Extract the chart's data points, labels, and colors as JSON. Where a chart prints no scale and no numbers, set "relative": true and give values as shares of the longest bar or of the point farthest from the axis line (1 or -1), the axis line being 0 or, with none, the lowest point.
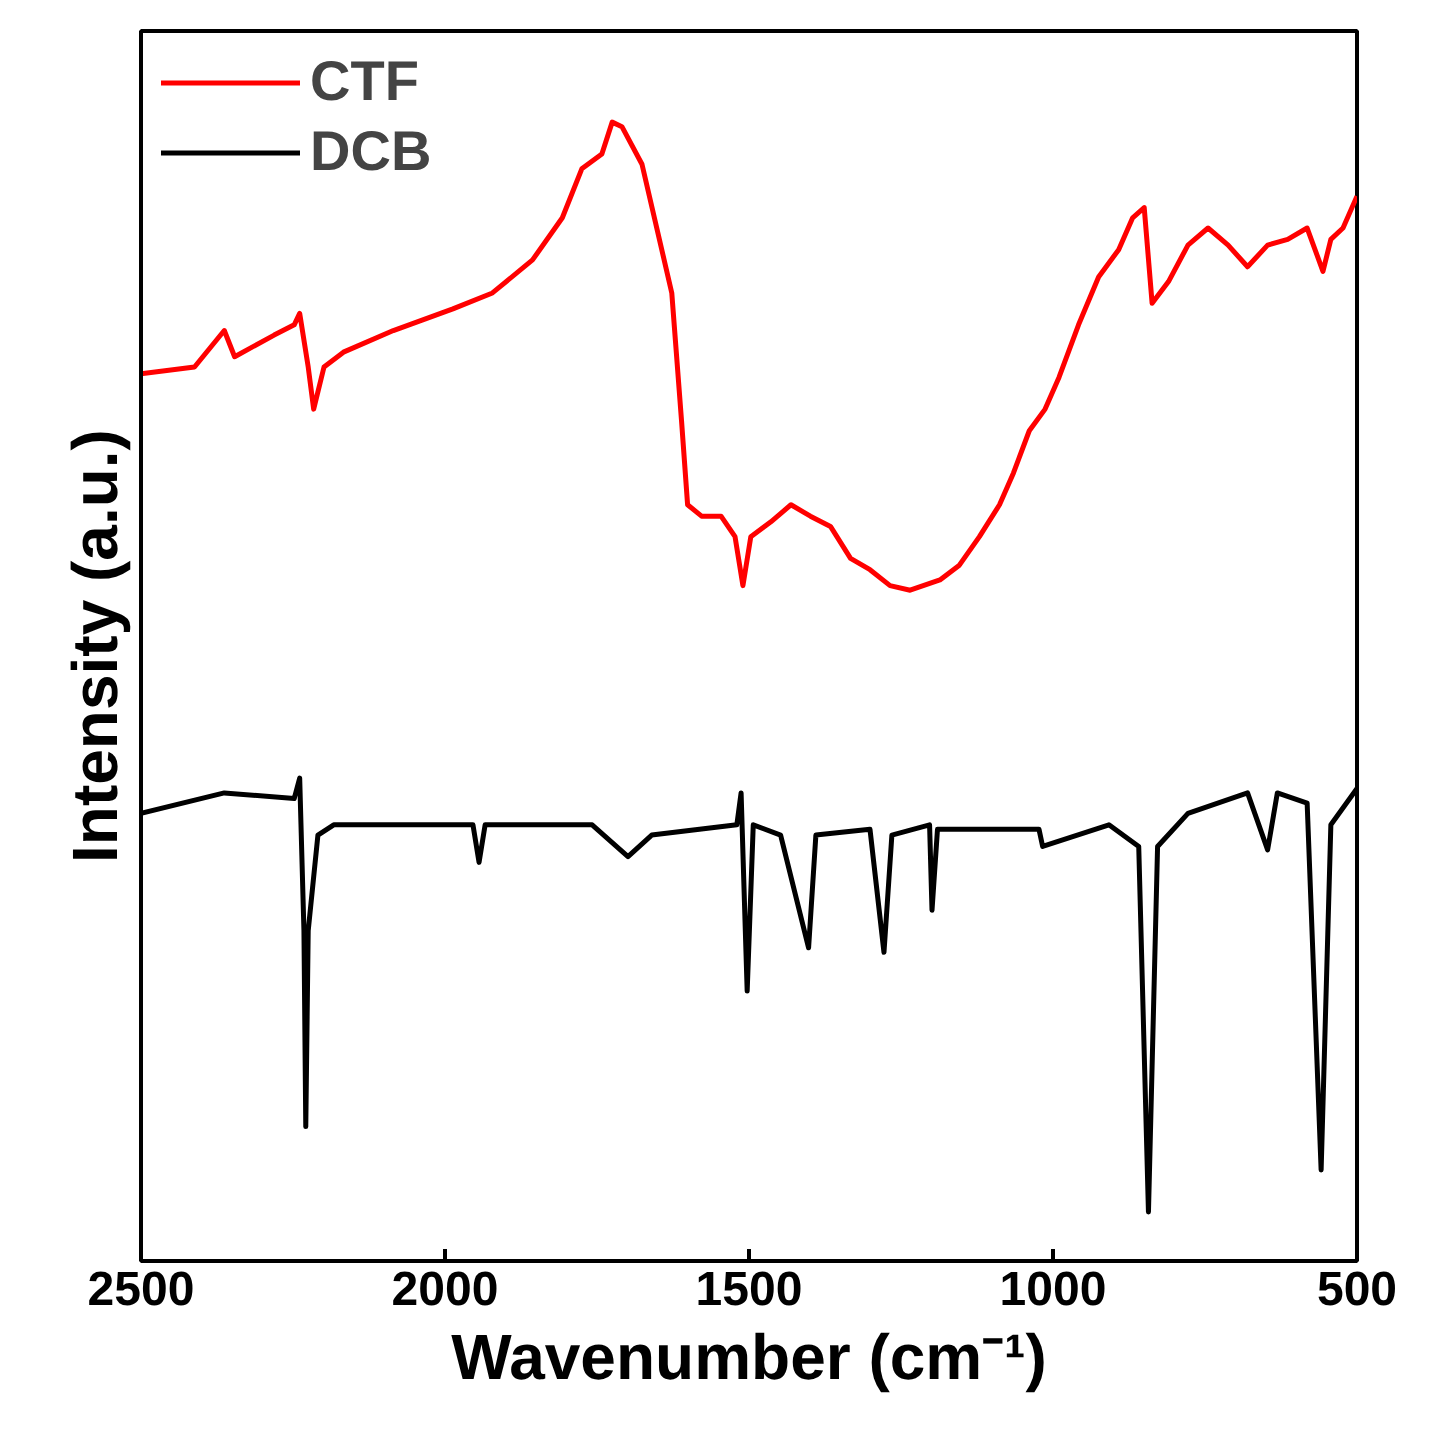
{
  "chart_data": {
    "type": "line",
    "relative": true,
    "xlabel": "Wavenumber (cm⁻¹)",
    "ylabel": "Intensity (a.u.)",
    "xlim": [
      2500,
      500
    ],
    "xticks": [
      2500,
      2000,
      1500,
      1000,
      500
    ],
    "grid": false,
    "legend": "top left",
    "tick_labels": "x",
    "line_style": "solid",
    "marker": "none",
    "series": [
      {
        "name": "CTF",
        "color": "#ff0000",
        "x": [
          2500,
          2412,
          2363,
          2346,
          2281,
          2248,
          2239,
          2225,
          2216,
          2199,
          2167,
          2085,
          1987,
          1922,
          1856,
          1807,
          1775,
          1742,
          1725,
          1709,
          1676,
          1627,
          1611,
          1601,
          1578,
          1546,
          1523,
          1510,
          1497,
          1464,
          1431,
          1399,
          1366,
          1333,
          1301,
          1268,
          1235,
          1186,
          1154,
          1121,
          1088,
          1065,
          1039,
          1013,
          990,
          958,
          925,
          892,
          869,
          850,
          837,
          810,
          778,
          745,
          712,
          680,
          647,
          614,
          582,
          556,
          543,
          523,
          500
        ],
        "values": [
          0.779,
          0.785,
          0.817,
          0.794,
          0.813,
          0.822,
          0.832,
          0.785,
          0.748,
          0.785,
          0.798,
          0.817,
          0.836,
          0.85,
          0.879,
          0.916,
          0.959,
          0.972,
          1.0,
          0.996,
          0.963,
          0.85,
          0.738,
          0.664,
          0.654,
          0.654,
          0.636,
          0.593,
          0.636,
          0.649,
          0.664,
          0.654,
          0.645,
          0.617,
          0.607,
          0.593,
          0.589,
          0.598,
          0.611,
          0.636,
          0.664,
          0.692,
          0.729,
          0.748,
          0.776,
          0.822,
          0.864,
          0.888,
          0.916,
          0.925,
          0.841,
          0.86,
          0.892,
          0.907,
          0.892,
          0.873,
          0.892,
          0.897,
          0.907,
          0.869,
          0.897,
          0.907,
          0.935
        ]
      },
      {
        "name": "DCB",
        "color": "#000000",
        "x": [
          2500,
          2363,
          2248,
          2239,
          2232,
          2229,
          2225,
          2209,
          2183,
          1954,
          1944,
          1934,
          1758,
          1699,
          1660,
          1520,
          1513,
          1503,
          1493,
          1448,
          1402,
          1390,
          1301,
          1278,
          1265,
          1203,
          1199,
          1190,
          1023,
          1017,
          908,
          859,
          843,
          828,
          778,
          680,
          647,
          631,
          582,
          559,
          543,
          500
        ],
        "values": [
          0.393,
          0.411,
          0.406,
          0.424,
          0.29,
          0.118,
          0.29,
          0.374,
          0.383,
          0.383,
          0.35,
          0.383,
          0.383,
          0.355,
          0.374,
          0.383,
          0.411,
          0.237,
          0.383,
          0.374,
          0.275,
          0.374,
          0.379,
          0.271,
          0.374,
          0.383,
          0.308,
          0.379,
          0.379,
          0.364,
          0.383,
          0.364,
          0.043,
          0.364,
          0.393,
          0.411,
          0.361,
          0.411,
          0.402,
          0.08,
          0.383,
          0.415
        ]
      }
    ]
  }
}
